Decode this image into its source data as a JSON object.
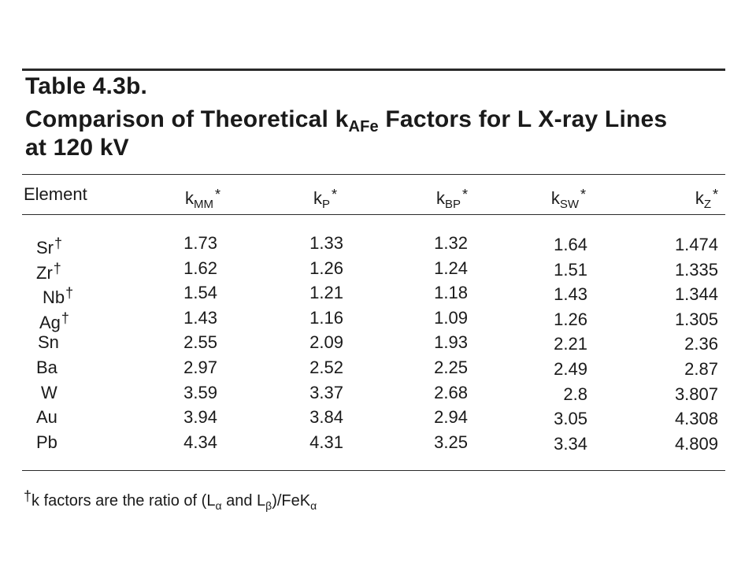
{
  "table": {
    "title": "Table 4.3b.",
    "subtitle_prefix": "Comparison of Theoretical k",
    "subtitle_sub": "AFe",
    "subtitle_suffix": " Factors for L X-ray Lines",
    "subtitle_line3": "at 120 kV",
    "columns": [
      {
        "label": "Element",
        "base": "",
        "sub": "",
        "mark": ""
      },
      {
        "label": "",
        "base": "k",
        "sub": "MM",
        "mark": "*"
      },
      {
        "label": "",
        "base": "k",
        "sub": "P",
        "mark": "*"
      },
      {
        "label": "",
        "base": "k",
        "sub": "BP",
        "mark": "*"
      },
      {
        "label": "",
        "base": "k",
        "sub": "SW",
        "mark": "*"
      },
      {
        "label": "",
        "base": "k",
        "sub": "Z",
        "mark": "*"
      }
    ],
    "rows": [
      {
        "element": "Sr",
        "dagger": "†",
        "values": [
          "1.73",
          "1.33",
          "1.32",
          "1.64",
          "1.474"
        ]
      },
      {
        "element": "Zr",
        "dagger": "†",
        "values": [
          "1.62",
          "1.26",
          "1.24",
          "1.51",
          "1.335"
        ]
      },
      {
        "element": "Nb",
        "dagger": "†",
        "values": [
          "1.54",
          "1.21",
          "1.18",
          "1.43",
          "1.344"
        ]
      },
      {
        "element": "Ag",
        "dagger": "†",
        "values": [
          "1.43",
          "1.16",
          "1.09",
          "1.26",
          "1.305"
        ]
      },
      {
        "element": "Sn",
        "dagger": "",
        "values": [
          "2.55",
          "2.09",
          "1.93",
          "2.21",
          "2.36"
        ]
      },
      {
        "element": "Ba",
        "dagger": "",
        "values": [
          "2.97",
          "2.52",
          "2.25",
          "2.49",
          "2.87"
        ]
      },
      {
        "element": "W",
        "dagger": "",
        "values": [
          "3.59",
          "3.37",
          "2.68",
          "2.8",
          "3.807"
        ]
      },
      {
        "element": "Au",
        "dagger": "",
        "values": [
          "3.94",
          "3.84",
          "2.94",
          "3.05",
          "4.308"
        ]
      },
      {
        "element": "Pb",
        "dagger": "",
        "values": [
          "4.34",
          "4.31",
          "3.25",
          "3.34",
          "4.809"
        ]
      }
    ],
    "footnote": {
      "dagger": "†",
      "text1": "k factors are the ratio of (L",
      "alpha": "α",
      "text2": " and L",
      "beta": "β",
      "text3": ")/FeK",
      "alpha2": "α"
    }
  }
}
